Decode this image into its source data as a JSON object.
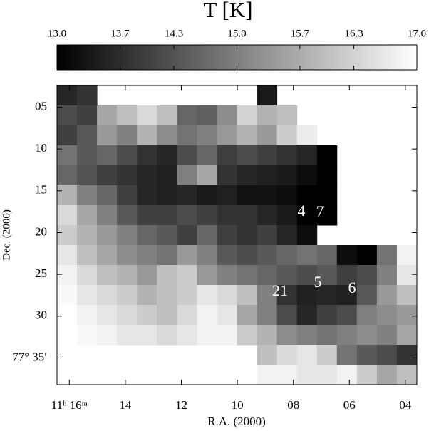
{
  "chart_data": {
    "type": "heatmap",
    "title": "T [K]",
    "x_label": "R.A. (2000)",
    "y_label": "Dec. (2000)",
    "xlim": [
      16.44,
      3.59
    ],
    "xticks": [
      {
        "value": 16,
        "label": "11ʰ 16ᵐ"
      },
      14,
      12,
      10,
      {
        "value": 8,
        "label": "08"
      },
      {
        "value": 6,
        "label": "06"
      },
      {
        "value": 4,
        "label": "04"
      }
    ],
    "ylim": [
      2.4,
      38.2
    ],
    "yticks": [
      {
        "value": 5,
        "label": "05"
      },
      10,
      15,
      20,
      25,
      30,
      {
        "value": 35,
        "label": "77° 35′"
      }
    ],
    "zlim": [
      13.0,
      17.0
    ],
    "zticks": [
      {
        "value": 13.0,
        "label": "13.0"
      },
      13.7,
      14.3,
      {
        "value": 15.0,
        "label": "15.0"
      },
      15.7,
      16.3,
      {
        "value": 17.0,
        "label": "17.0"
      }
    ],
    "colormap": [
      "#000000",
      "#ffffff"
    ],
    "annotations": [
      "4",
      "7",
      "5",
      "6",
      "21"
    ],
    "z": [
      [
        13.6,
        13.8,
        null,
        null,
        null,
        null,
        null,
        null,
        null,
        null,
        13.4,
        null,
        null,
        null,
        null,
        null,
        null,
        null
      ],
      [
        14.2,
        14.0,
        15.6,
        16.0,
        16.4,
        16.0,
        14.6,
        14.5,
        15.2,
        16.3,
        15.8,
        16.0,
        null,
        null,
        null,
        null,
        null,
        null
      ],
      [
        14.0,
        14.4,
        15.4,
        15.0,
        15.8,
        15.2,
        14.8,
        15.0,
        15.4,
        15.8,
        15.4,
        16.2,
        16.7,
        null,
        null,
        null,
        null,
        null
      ],
      [
        14.8,
        14.4,
        14.6,
        14.2,
        13.8,
        13.6,
        14.2,
        14.6,
        14.0,
        14.2,
        14.0,
        13.8,
        13.6,
        13.0,
        null,
        null,
        null,
        null
      ],
      [
        14.6,
        14.3,
        14.0,
        13.8,
        13.6,
        13.5,
        15.0,
        15.6,
        13.8,
        13.6,
        13.5,
        13.4,
        13.2,
        13.0,
        null,
        null,
        null,
        null
      ],
      [
        15.8,
        15.0,
        14.6,
        14.0,
        13.6,
        13.5,
        13.6,
        13.4,
        13.5,
        13.3,
        13.3,
        13.2,
        13.0,
        13.0,
        null,
        null,
        null,
        null
      ],
      [
        16.4,
        15.6,
        15.0,
        14.4,
        14.0,
        14.0,
        14.2,
        14.0,
        13.8,
        13.8,
        13.6,
        13.4,
        13.0,
        13.0,
        null,
        null,
        null,
        null
      ],
      [
        16.2,
        15.8,
        15.4,
        15.0,
        14.6,
        14.4,
        14.0,
        14.6,
        14.0,
        13.8,
        14.0,
        13.6,
        13.2,
        null,
        null,
        null,
        null,
        null
      ],
      [
        16.6,
        16.0,
        15.6,
        15.2,
        15.0,
        14.8,
        15.4,
        15.0,
        14.4,
        14.2,
        14.4,
        14.6,
        14.8,
        14.6,
        13.2,
        13.0,
        14.8,
        16.8
      ],
      [
        16.8,
        16.4,
        16.0,
        15.8,
        15.4,
        16.0,
        16.2,
        15.4,
        15.0,
        14.8,
        14.6,
        14.4,
        14.2,
        14.4,
        14.0,
        14.2,
        15.0,
        16.6
      ],
      [
        16.9,
        16.6,
        16.4,
        16.2,
        15.8,
        16.0,
        16.2,
        16.6,
        16.4,
        16.0,
        15.0,
        13.8,
        13.5,
        13.6,
        13.5,
        14.4,
        15.4,
        16.0
      ],
      [
        17.0,
        16.8,
        16.6,
        16.4,
        16.2,
        16.0,
        16.4,
        16.8,
        16.6,
        15.6,
        15.0,
        14.2,
        13.6,
        14.0,
        14.2,
        15.0,
        15.2,
        15.4
      ],
      [
        null,
        16.9,
        16.8,
        16.6,
        16.6,
        16.4,
        16.6,
        16.8,
        16.8,
        16.2,
        15.8,
        15.2,
        15.0,
        14.8,
        15.0,
        15.2,
        15.0,
        15.6
      ],
      [
        null,
        null,
        null,
        null,
        null,
        null,
        null,
        null,
        null,
        null,
        16.0,
        16.4,
        16.6,
        16.2,
        14.8,
        14.4,
        14.2,
        13.8
      ],
      [
        null,
        null,
        null,
        null,
        null,
        null,
        null,
        null,
        null,
        null,
        16.8,
        16.8,
        16.6,
        16.6,
        16.8,
        16.2,
        15.6,
        16.0
      ]
    ]
  }
}
